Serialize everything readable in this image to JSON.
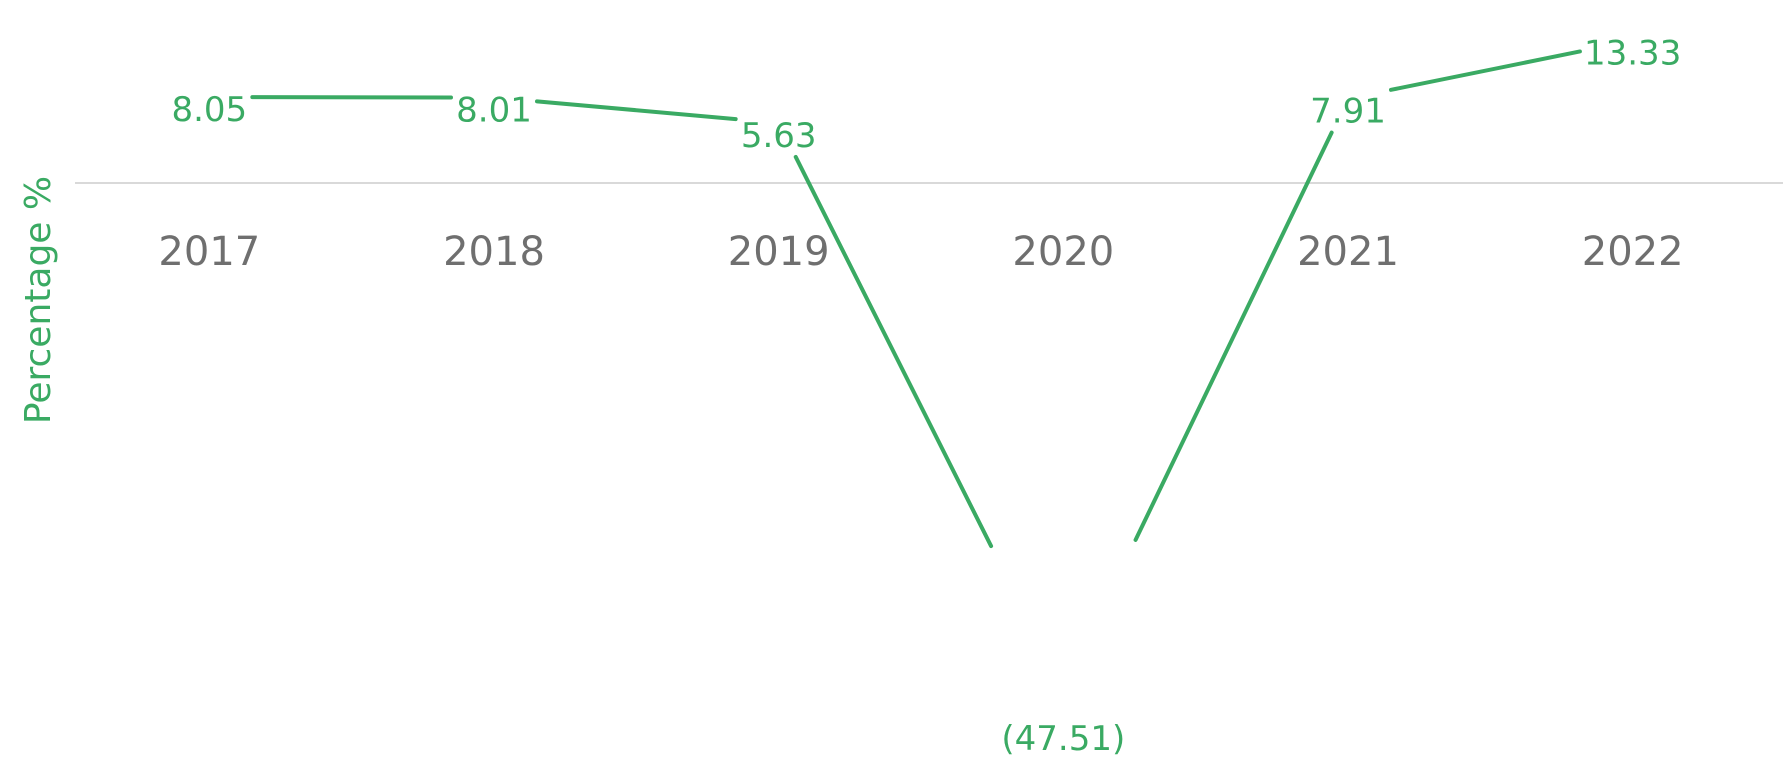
{
  "chart_data": {
    "type": "line",
    "title": "",
    "xlabel": "",
    "ylabel": "Percentage %",
    "categories": [
      "2017",
      "2018",
      "2019",
      "2020",
      "2021",
      "2022"
    ],
    "series": [
      {
        "values": [
          8.05,
          8.01,
          5.63,
          -47.51,
          7.91,
          13.33
        ],
        "data_labels": [
          "8.05",
          "8.01",
          "5.63",
          "(47.51)",
          "7.91",
          "13.33"
        ],
        "color": "#3aaa63"
      }
    ],
    "ylim": [
      -50,
      15
    ],
    "grid": false,
    "legend": "none",
    "axis_color": "#d9d9d9",
    "tick_label_color": "#6f6f6f"
  }
}
